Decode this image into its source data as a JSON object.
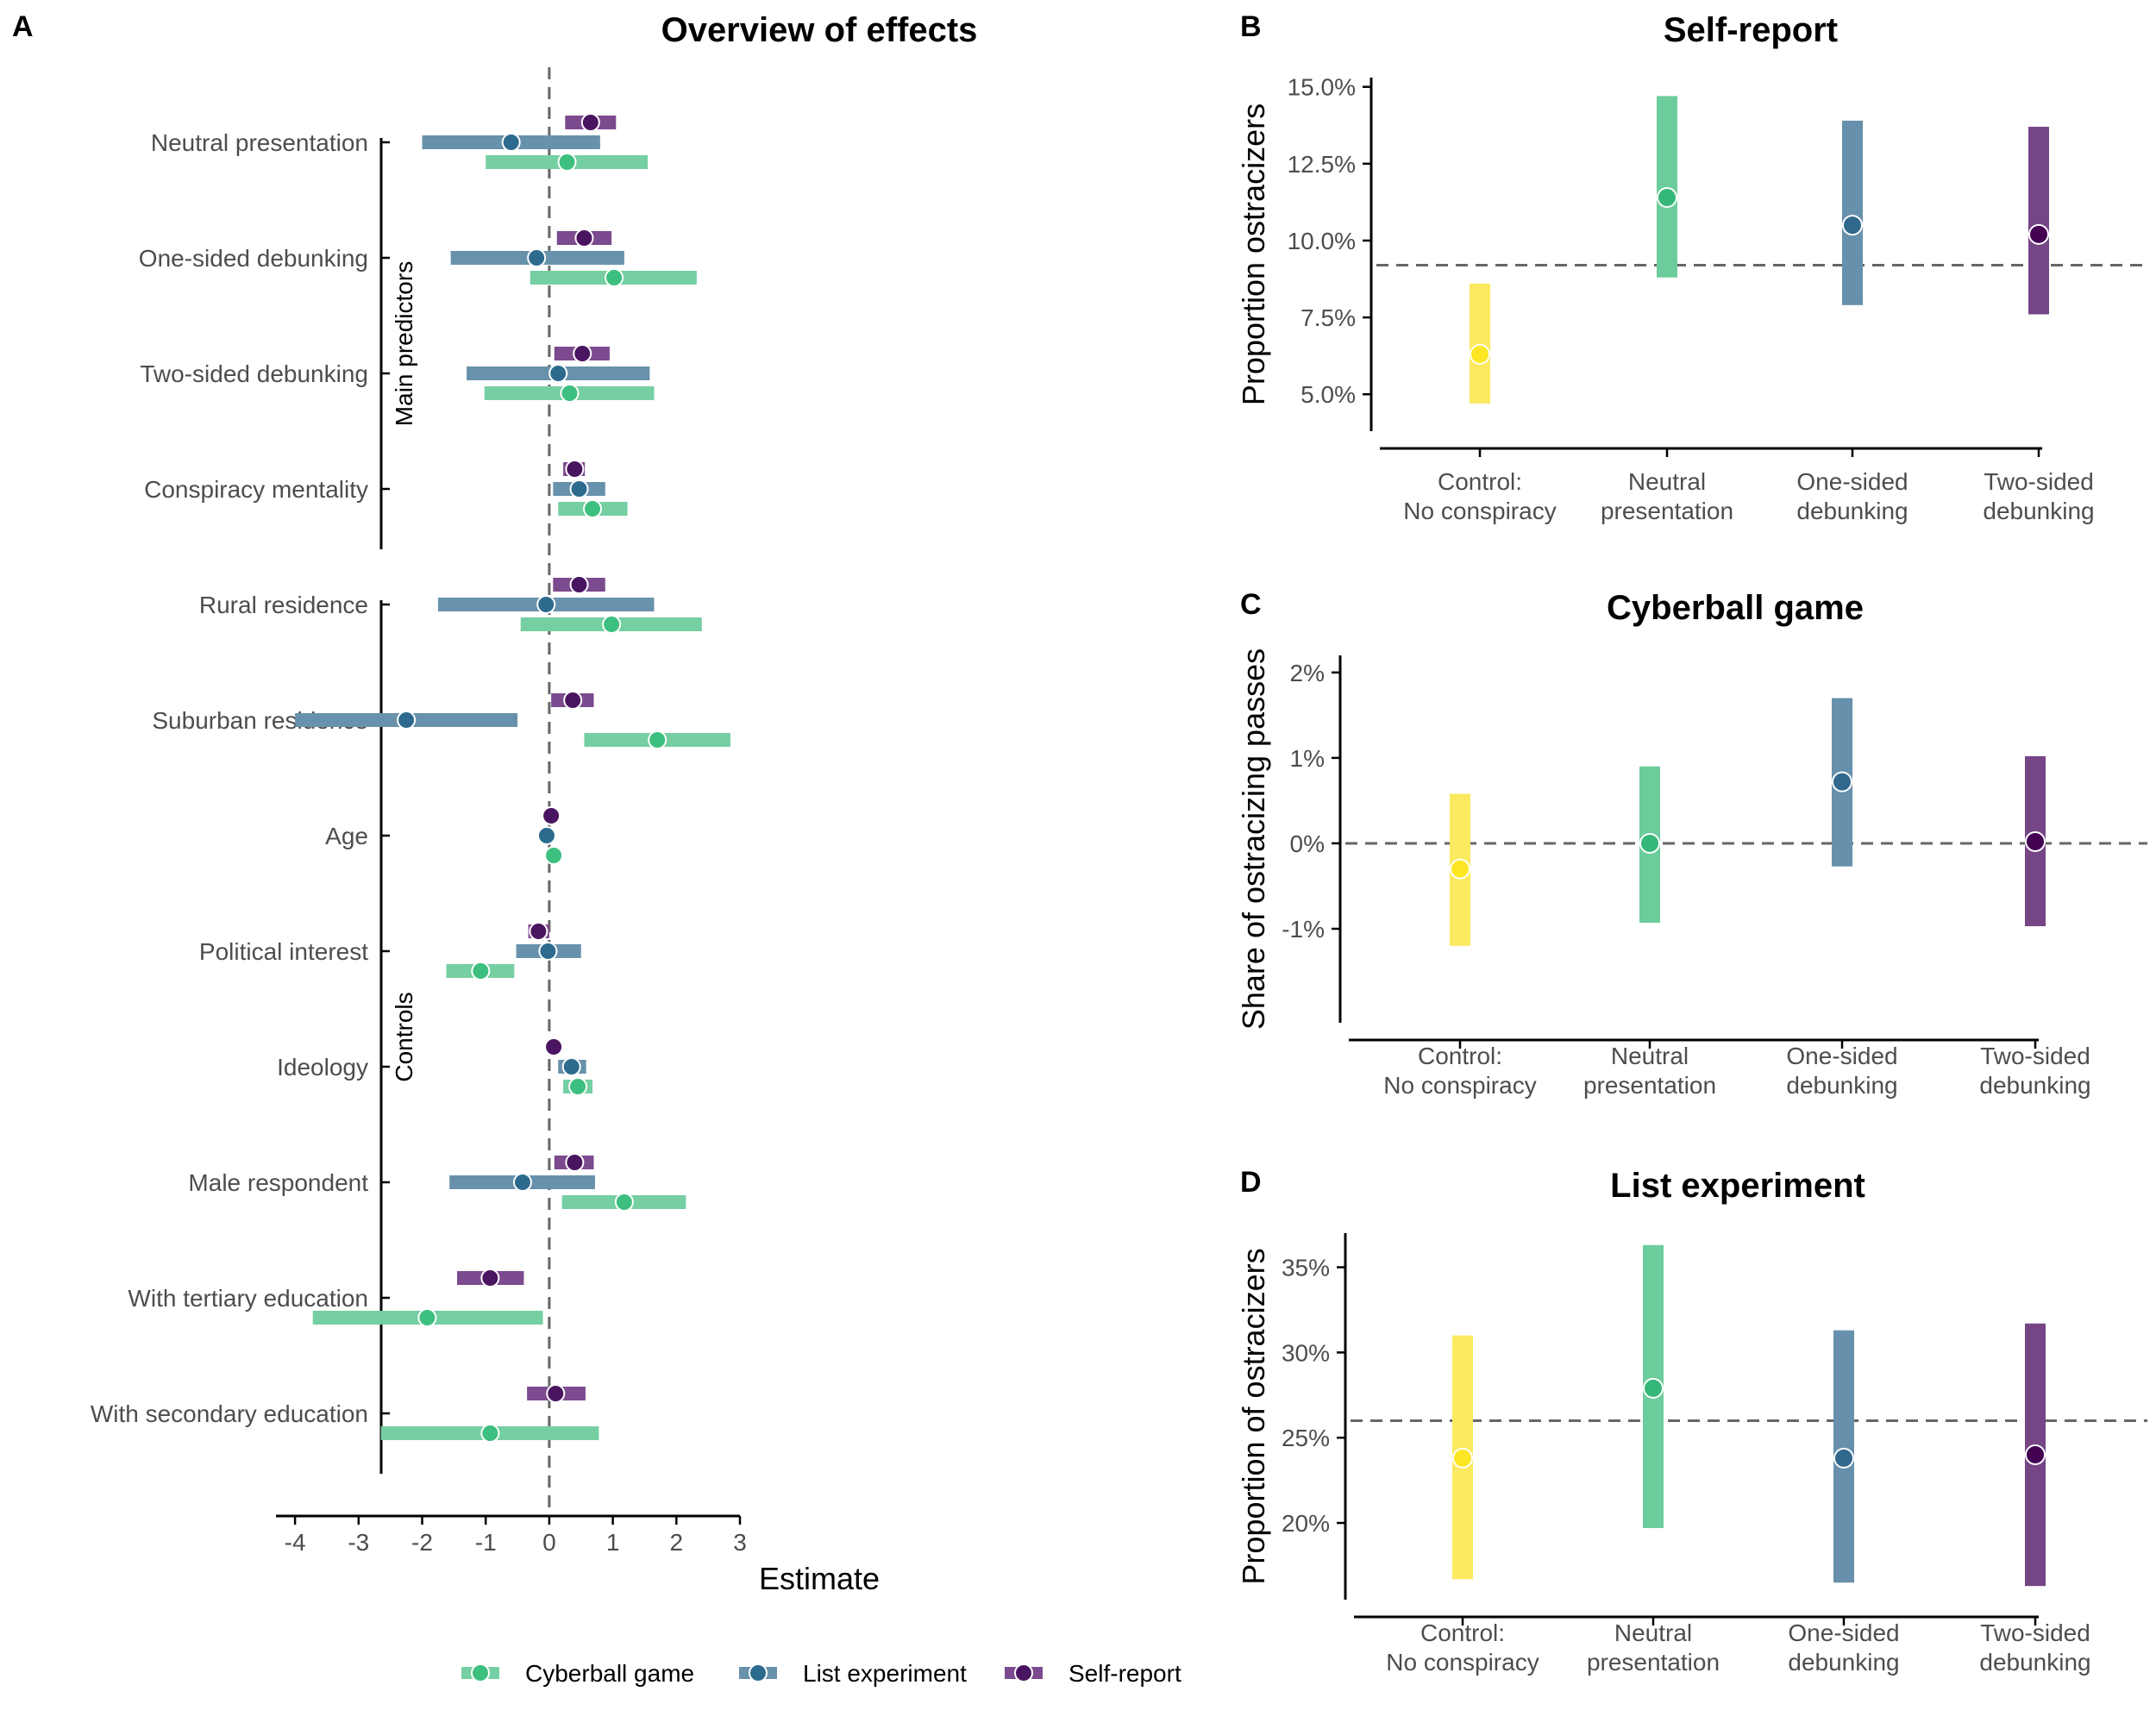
{
  "colors": {
    "cyberball": "#3dbf7f",
    "list": "#2d6b8e",
    "self": "#4a1560",
    "cyberball_bar": "#75cfa2",
    "list_bar": "#6891ab",
    "self_bar": "#7c4a8e",
    "control": "#fde725",
    "control_bar": "#fbe95f",
    "neutral_pt": "#35b779",
    "neutral_bar": "#6ccc9b",
    "onesided_pt": "#31688e",
    "onesided_bar": "#6790ad",
    "twosided_pt": "#440154",
    "twosided_bar": "#754585",
    "dash": "#666666",
    "axis": "#000000"
  },
  "chart_data": [
    {
      "id": "A",
      "panel_letter": "A",
      "type": "forest",
      "title": "Overview of effects",
      "xlabel": "Estimate",
      "xlim": [
        -4.3,
        3.0
      ],
      "xticks": [
        -4,
        -3,
        -2,
        -1,
        0,
        1,
        2,
        3
      ],
      "xtick_labels": [
        "-4",
        "-3",
        "-2",
        "-1",
        "0",
        "1",
        "2",
        "3"
      ],
      "reference_line": 0,
      "groups": [
        {
          "label": "Main predictors",
          "rows": [
            0,
            3
          ]
        },
        {
          "label": "Controls",
          "rows": [
            4,
            11
          ]
        }
      ],
      "legend": [
        {
          "name": "Cyberball game",
          "key": "cyberball"
        },
        {
          "name": "List experiment",
          "key": "list"
        },
        {
          "name": "Self-report",
          "key": "self"
        }
      ],
      "rows": [
        {
          "label": "Neutral presentation",
          "self": [
            0.65,
            0.25,
            1.05
          ],
          "list": [
            -0.6,
            -2.0,
            0.8
          ],
          "cyberball": [
            0.28,
            -1.0,
            1.55
          ]
        },
        {
          "label": "One-sided debunking",
          "self": [
            0.55,
            0.12,
            0.98
          ],
          "list": [
            -0.2,
            -1.55,
            1.18
          ],
          "cyberball": [
            1.02,
            -0.3,
            2.32
          ]
        },
        {
          "label": "Two-sided debunking",
          "self": [
            0.52,
            0.08,
            0.95
          ],
          "list": [
            0.14,
            -1.3,
            1.58
          ],
          "cyberball": [
            0.32,
            -1.02,
            1.65
          ]
        },
        {
          "label": "Conspiracy mentality",
          "self": [
            0.4,
            0.22,
            0.56
          ],
          "list": [
            0.47,
            0.06,
            0.88
          ],
          "cyberball": [
            0.68,
            0.14,
            1.23
          ]
        },
        {
          "label": "Rural residence",
          "self": [
            0.47,
            0.06,
            0.88
          ],
          "list": [
            -0.05,
            -1.75,
            1.65
          ],
          "cyberball": [
            0.98,
            -0.45,
            2.4
          ]
        },
        {
          "label": "Suburban residence",
          "self": [
            0.37,
            0.03,
            0.7
          ],
          "list": [
            -2.25,
            -4.0,
            -0.5
          ],
          "cyberball": [
            1.7,
            0.55,
            2.85
          ]
        },
        {
          "label": "Age",
          "self": [
            0.03,
            0.03,
            0.03
          ],
          "list": [
            -0.04,
            -0.04,
            -0.04
          ],
          "cyberball": [
            0.07,
            0.07,
            0.07
          ]
        },
        {
          "label": "Political interest",
          "self": [
            -0.17,
            -0.33,
            0.0
          ],
          "list": [
            -0.02,
            -0.52,
            0.5
          ],
          "cyberball": [
            -1.08,
            -1.62,
            -0.55
          ]
        },
        {
          "label": "Ideology",
          "self": [
            0.07,
            0.07,
            0.07
          ],
          "list": [
            0.35,
            0.14,
            0.58
          ],
          "cyberball": [
            0.45,
            0.22,
            0.68
          ]
        },
        {
          "label": "Male respondent",
          "self": [
            0.4,
            0.08,
            0.7
          ],
          "list": [
            -0.42,
            -1.57,
            0.72
          ],
          "cyberball": [
            1.18,
            0.2,
            2.15
          ]
        },
        {
          "label": "With tertiary education",
          "self": [
            -0.93,
            -1.45,
            -0.4
          ],
          "list": null,
          "cyberball": [
            -1.92,
            -3.72,
            -0.1
          ]
        },
        {
          "label": "With secondary education",
          "self": [
            0.1,
            -0.35,
            0.57
          ],
          "list": null,
          "cyberball": [
            -0.93,
            -2.65,
            0.78
          ]
        }
      ]
    },
    {
      "id": "B",
      "panel_letter": "B",
      "type": "pointrange",
      "title": "Self-report",
      "ylabel": "Proportion ostracizers",
      "ylim": [
        3.8,
        15.3
      ],
      "yticks": [
        5.0,
        7.5,
        10.0,
        12.5,
        15.0
      ],
      "ytick_labels": [
        "5.0%",
        "7.5%",
        "10.0%",
        "12.5%",
        "15.0%"
      ],
      "reference_line": 9.2,
      "categories": [
        "Control:\nNo conspiracy",
        "Neutral\npresentation",
        "One-sided\ndebunking",
        "Two-sided\ndebunking"
      ],
      "points": [
        {
          "value": 6.3,
          "lo": 4.7,
          "hi": 8.6
        },
        {
          "value": 11.4,
          "lo": 8.8,
          "hi": 14.7
        },
        {
          "value": 10.5,
          "lo": 7.9,
          "hi": 13.9
        },
        {
          "value": 10.2,
          "lo": 7.6,
          "hi": 13.7
        }
      ]
    },
    {
      "id": "C",
      "panel_letter": "C",
      "type": "pointrange",
      "title": "Cyberball game",
      "ylabel": "Share of ostracizing passes",
      "ylim": [
        -2.1,
        2.2
      ],
      "yticks": [
        -1,
        0,
        1,
        2
      ],
      "ytick_labels": [
        "-1%",
        "0%",
        "1%",
        "2%"
      ],
      "reference_line": 0,
      "categories": [
        "Control:\nNo conspiracy",
        "Neutral\npresentation",
        "One-sided\ndebunking",
        "Two-sided\ndebunking"
      ],
      "points": [
        {
          "value": -0.3,
          "lo": -1.2,
          "hi": 0.58
        },
        {
          "value": 0.0,
          "lo": -0.93,
          "hi": 0.9
        },
        {
          "value": 0.72,
          "lo": -0.27,
          "hi": 1.7
        },
        {
          "value": 0.02,
          "lo": -0.97,
          "hi": 1.02
        }
      ]
    },
    {
      "id": "D",
      "panel_letter": "D",
      "type": "pointrange",
      "title": "List experiment",
      "ylabel": "Proportion of ostracizers",
      "ylim": [
        15.5,
        37.0
      ],
      "yticks": [
        20,
        25,
        30,
        35
      ],
      "ytick_labels": [
        "20%",
        "25%",
        "30%",
        "35%"
      ],
      "reference_line": 26.0,
      "categories": [
        "Control:\nNo conspiracy",
        "Neutral\npresentation",
        "One-sided\ndebunking",
        "Two-sided\ndebunking"
      ],
      "points": [
        {
          "value": 23.8,
          "lo": 16.7,
          "hi": 31.0
        },
        {
          "value": 27.9,
          "lo": 19.7,
          "hi": 36.3
        },
        {
          "value": 23.8,
          "lo": 16.5,
          "hi": 31.3
        },
        {
          "value": 24.0,
          "lo": 16.3,
          "hi": 31.7
        }
      ]
    }
  ]
}
